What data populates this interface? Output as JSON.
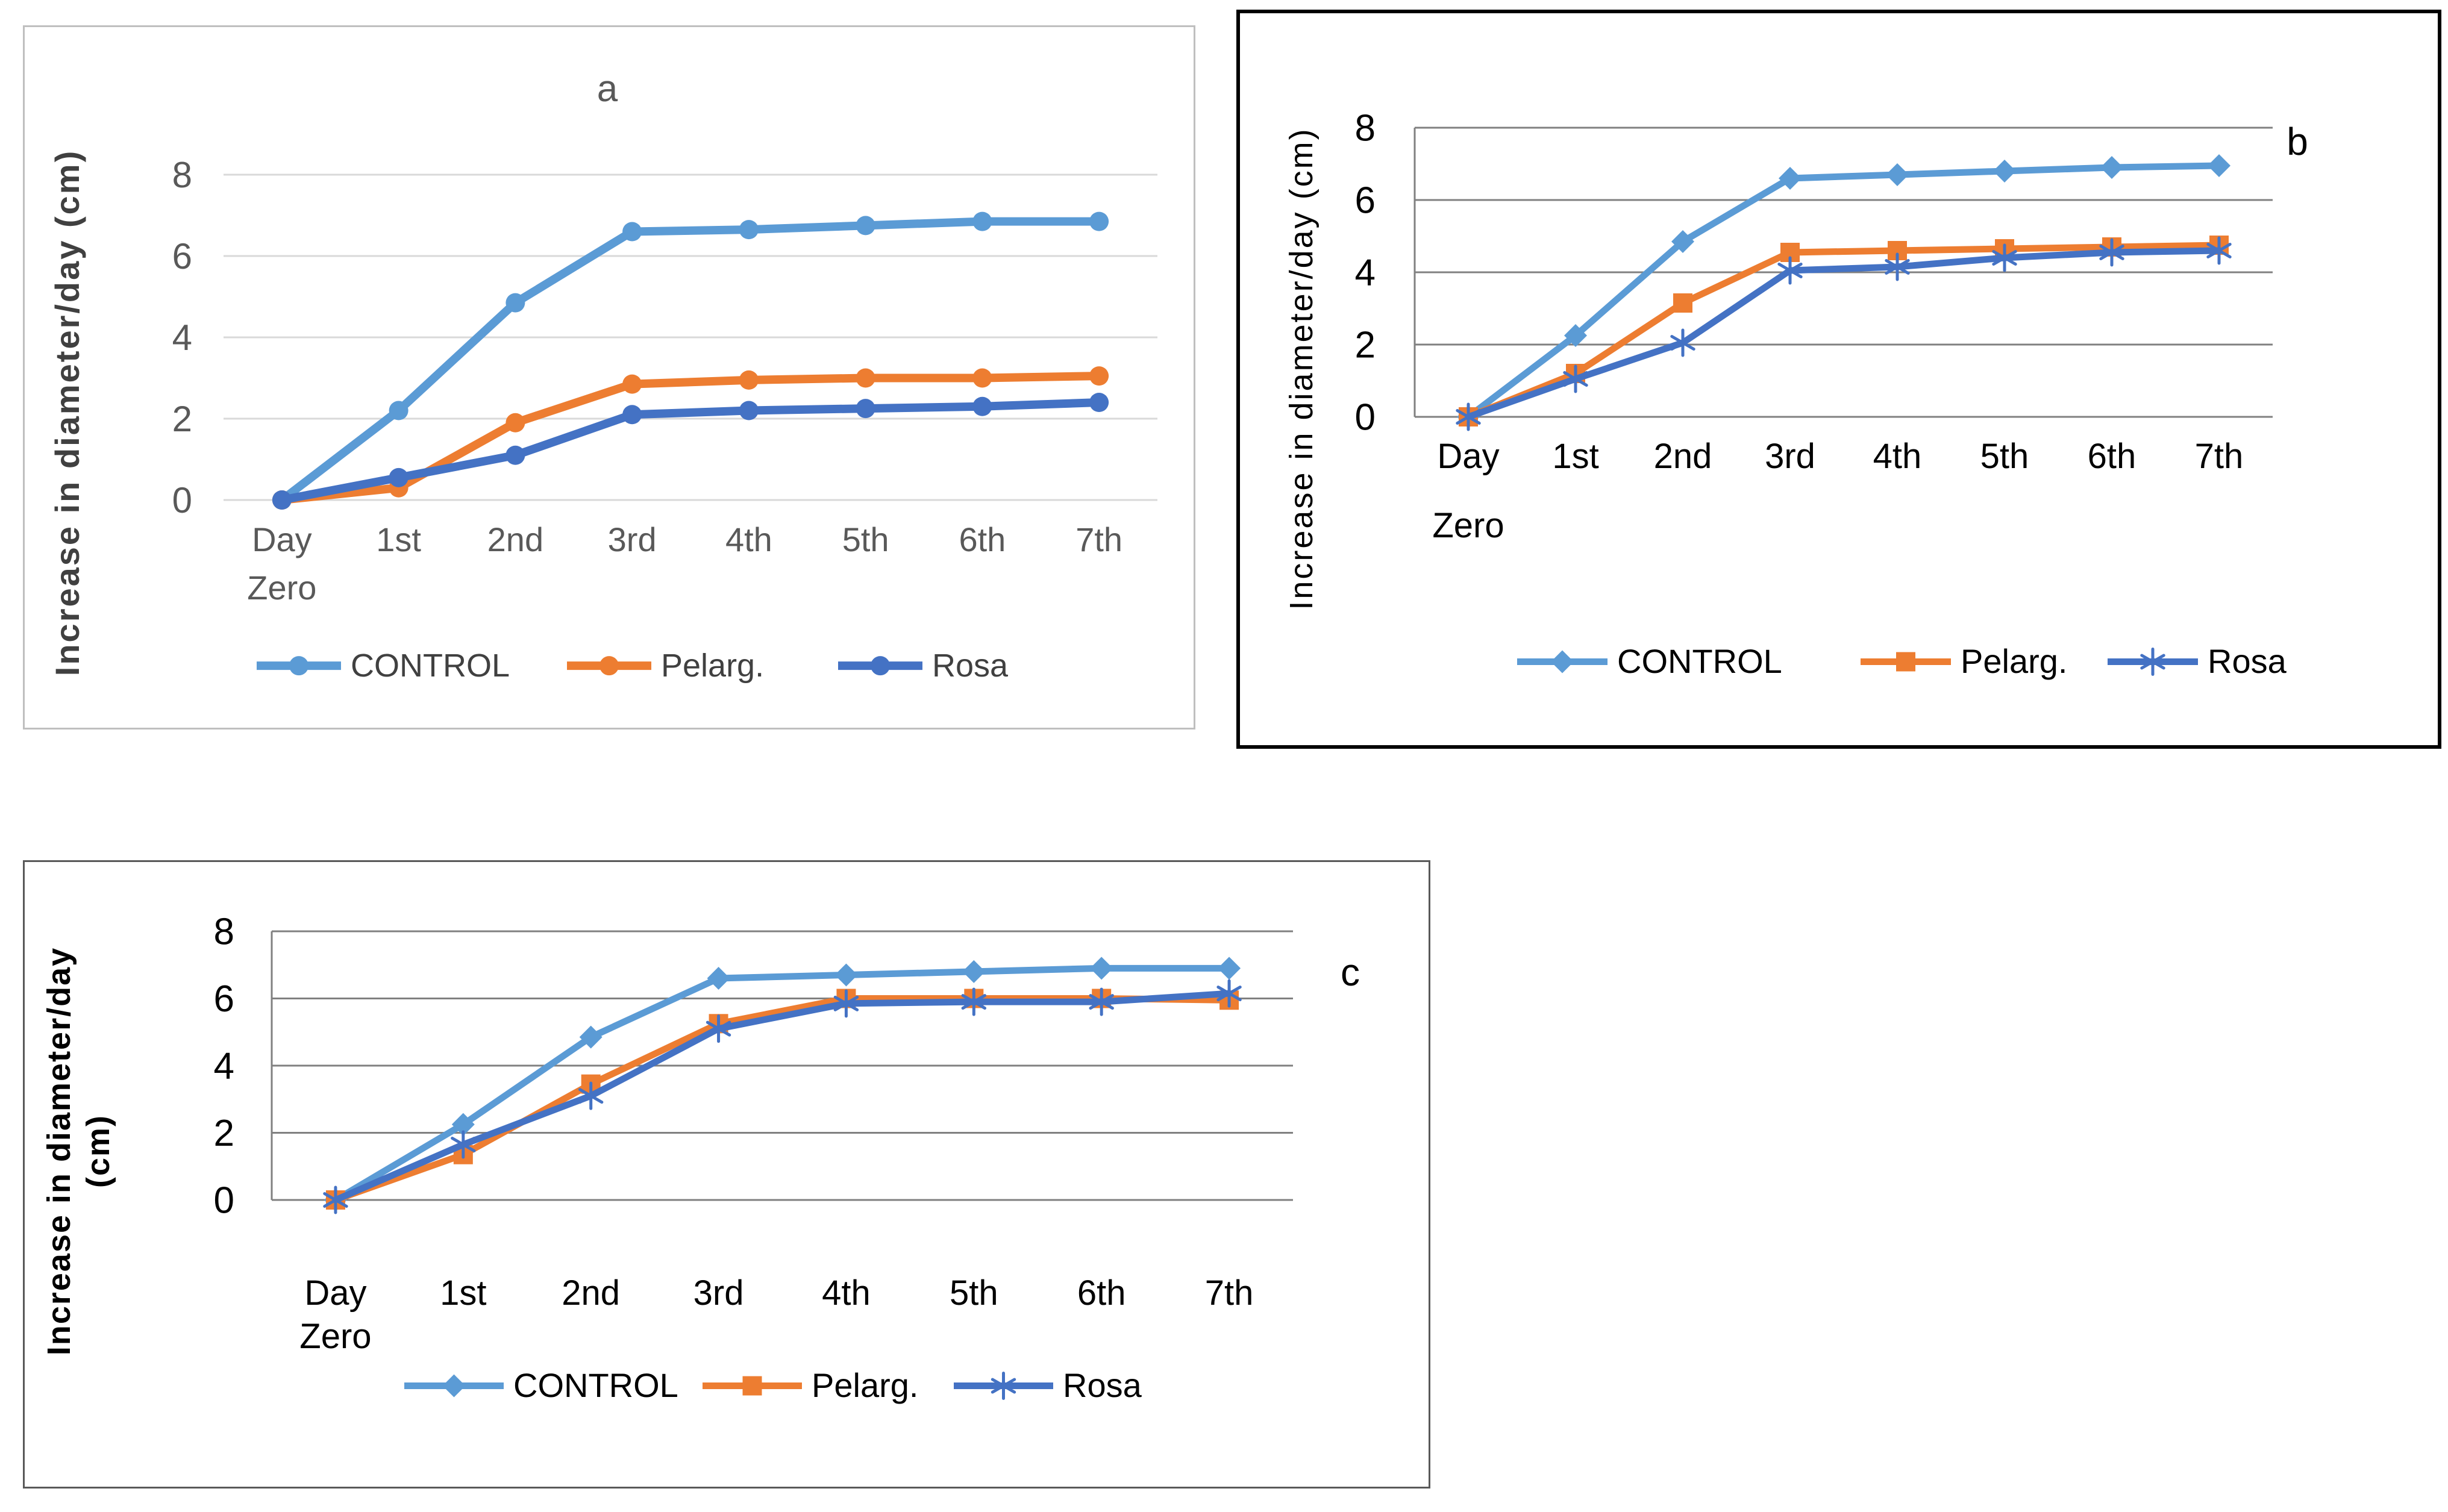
{
  "figure": {
    "background": "#FFFFFF"
  },
  "chart_data": [
    {
      "type": "line",
      "panel": "a",
      "title": "a",
      "ylabel": "Increase in diameter/day (cm)",
      "ylabel_lines": [
        "Increase in diameter/day (cm)"
      ],
      "xlabel": "",
      "categories": [
        "Day Zero",
        "1st",
        "2nd",
        "3rd",
        "4th",
        "5th",
        "6th",
        "7th"
      ],
      "x_first_label_lines": [
        "Day",
        "Zero"
      ],
      "ylim": [
        0,
        8
      ],
      "yticks": [
        0,
        2,
        4,
        6,
        8
      ],
      "grid": "on",
      "legend_position": "bottom",
      "series": [
        {
          "name": "CONTROL",
          "color": "#5B9BD5",
          "marker": "circle",
          "values": [
            0,
            2.2,
            4.85,
            6.6,
            6.65,
            6.75,
            6.85,
            6.85
          ]
        },
        {
          "name": "Pelarg.",
          "color": "#ED7D31",
          "marker": "circle",
          "values": [
            0,
            0.3,
            1.9,
            2.85,
            2.95,
            3,
            3,
            3.05
          ]
        },
        {
          "name": "Rosa",
          "color": "#4472C4",
          "marker": "circle",
          "values": [
            0,
            0.55,
            1.1,
            2.1,
            2.2,
            2.25,
            2.3,
            2.4
          ]
        }
      ],
      "style": {
        "grid_color": "#D9D9D9",
        "axis_line": false,
        "border_color": "#BFBFBF",
        "border_width": 3,
        "tick_color": "#595959",
        "xlabel_color": "#595959",
        "ylabel_color": "#404040",
        "title_color": "#595959",
        "legend_text_color": "#404040"
      }
    },
    {
      "type": "line",
      "panel": "b",
      "title": "b",
      "ylabel": "Increase in diameter/day (cm)",
      "ylabel_lines": [
        "Increase in diameter/day (cm)"
      ],
      "xlabel": "",
      "categories": [
        "Day Zero",
        "1st",
        "2nd",
        "3rd",
        "4th",
        "5th",
        "6th",
        "7th"
      ],
      "x_first_label_lines": [
        "Day",
        "Zero"
      ],
      "ylim": [
        0,
        8
      ],
      "yticks": [
        0,
        2,
        4,
        6,
        8
      ],
      "grid": "on",
      "legend_position": "bottom",
      "series": [
        {
          "name": "CONTROL",
          "color": "#5B9BD5",
          "marker": "diamond",
          "values": [
            0,
            2.25,
            4.85,
            6.6,
            6.7,
            6.8,
            6.9,
            6.95
          ]
        },
        {
          "name": "Pelarg.",
          "color": "#ED7D31",
          "marker": "square",
          "values": [
            0,
            1.2,
            3.15,
            4.55,
            4.6,
            4.65,
            4.7,
            4.75
          ]
        },
        {
          "name": "Rosa",
          "color": "#4472C4",
          "marker": "asterisk",
          "values": [
            0,
            1.05,
            2.05,
            4.05,
            4.15,
            4.4,
            4.55,
            4.6
          ]
        }
      ],
      "style": {
        "grid_color": "#808080",
        "axis_line": true,
        "border_color": "#000000",
        "border_width": 6,
        "tick_color": "#000000",
        "xlabel_color": "#000000",
        "ylabel_color": "#000000",
        "title_color": "#000000",
        "legend_text_color": "#000000"
      }
    },
    {
      "type": "line",
      "panel": "c",
      "title": "c",
      "ylabel": "Increase in diameter/day (cm)",
      "ylabel_lines": [
        "Increase in diameter/day",
        "(cm)"
      ],
      "xlabel": "",
      "categories": [
        "Day Zero",
        "1st",
        "2nd",
        "3rd",
        "4th",
        "5th",
        "6th",
        "7th"
      ],
      "x_first_label_lines": [
        "Day",
        "Zero"
      ],
      "ylim": [
        0,
        8
      ],
      "yticks": [
        0,
        2,
        4,
        6,
        8
      ],
      "grid": "on",
      "legend_position": "bottom",
      "series": [
        {
          "name": "CONTROL",
          "color": "#5B9BD5",
          "marker": "diamond",
          "values": [
            0,
            2.25,
            4.85,
            6.6,
            6.7,
            6.8,
            6.9,
            6.9
          ]
        },
        {
          "name": "Pelarg.",
          "color": "#ED7D31",
          "marker": "square",
          "values": [
            0,
            1.35,
            3.45,
            5.25,
            6,
            6,
            6,
            5.95
          ]
        },
        {
          "name": "Rosa",
          "color": "#4472C4",
          "marker": "asterisk",
          "values": [
            0,
            1.65,
            3.1,
            5.1,
            5.85,
            5.9,
            5.9,
            6.15
          ]
        }
      ],
      "style": {
        "grid_color": "#808080",
        "axis_line": true,
        "border_color": "#595959",
        "border_width": 3,
        "tick_color": "#000000",
        "xlabel_color": "#000000",
        "ylabel_color": "#000000",
        "title_color": "#000000",
        "legend_text_color": "#000000"
      }
    }
  ]
}
